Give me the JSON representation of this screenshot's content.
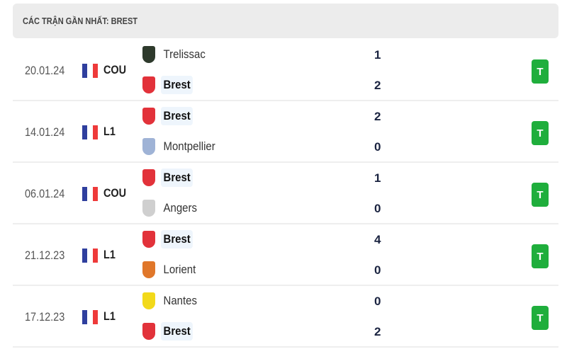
{
  "title": "CÁC TRẬN GẦN NHẤT: BREST",
  "colors": {
    "win": "#1fae3c",
    "highlight_bg": "#eef5fc",
    "flag": [
      "#2f3f9e",
      "#ffffff",
      "#ee3a3a"
    ]
  },
  "matches": [
    {
      "date": "20.01.24",
      "country": "France",
      "comp": "COU",
      "home": {
        "name": "Trelissac",
        "logo": "trelissac-crest-icon",
        "hl": false
      },
      "away": {
        "name": "Brest",
        "logo": "brest-crest-icon",
        "hl": true
      },
      "home_score": "1",
      "away_score": "2",
      "result": "T"
    },
    {
      "date": "14.01.24",
      "country": "France",
      "comp": "L1",
      "home": {
        "name": "Brest",
        "logo": "brest-crest-icon",
        "hl": true
      },
      "away": {
        "name": "Montpellier",
        "logo": "montpellier-crest-icon",
        "hl": false
      },
      "home_score": "2",
      "away_score": "0",
      "result": "T"
    },
    {
      "date": "06.01.24",
      "country": "France",
      "comp": "COU",
      "home": {
        "name": "Brest",
        "logo": "brest-crest-icon",
        "hl": true
      },
      "away": {
        "name": "Angers",
        "logo": "angers-crest-icon",
        "hl": false
      },
      "home_score": "1",
      "away_score": "0",
      "result": "T"
    },
    {
      "date": "21.12.23",
      "country": "France",
      "comp": "L1",
      "home": {
        "name": "Brest",
        "logo": "brest-crest-icon",
        "hl": true
      },
      "away": {
        "name": "Lorient",
        "logo": "lorient-crest-icon",
        "hl": false
      },
      "home_score": "4",
      "away_score": "0",
      "result": "T"
    },
    {
      "date": "17.12.23",
      "country": "France",
      "comp": "L1",
      "home": {
        "name": "Nantes",
        "logo": "nantes-crest-icon",
        "hl": false
      },
      "away": {
        "name": "Brest",
        "logo": "brest-crest-icon",
        "hl": true
      },
      "home_score": "0",
      "away_score": "2",
      "result": "T"
    }
  ]
}
